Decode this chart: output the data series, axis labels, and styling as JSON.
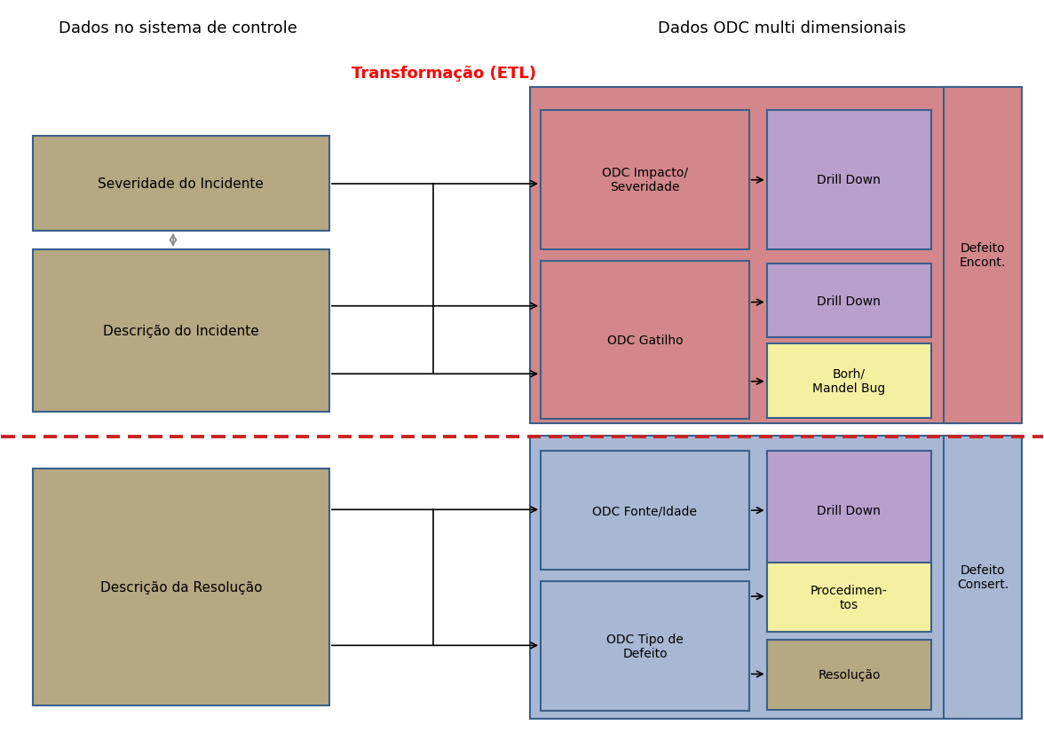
{
  "title_left": "Dados no sistema de controle",
  "title_right": "Dados ODC multi dimensionais",
  "etl_label": "Transformação (ETL)",
  "bg_color": "#ffffff",
  "tan_color": "#b5a882",
  "tan_border": "#3a5f8a",
  "pink_color": "#d4878a",
  "pink_border": "#3a5f8a",
  "purple_color": "#b89fcc",
  "purple_border": "#3a5f8a",
  "yellow_color": "#f5f0a0",
  "yellow_border": "#3a5f8a",
  "blue_box_color": "#a8b8d4",
  "blue_box_border": "#3a5f8a",
  "olive_color": "#b5a882",
  "olive_border": "#3a5f8a",
  "dashed_color": "#cc2222"
}
